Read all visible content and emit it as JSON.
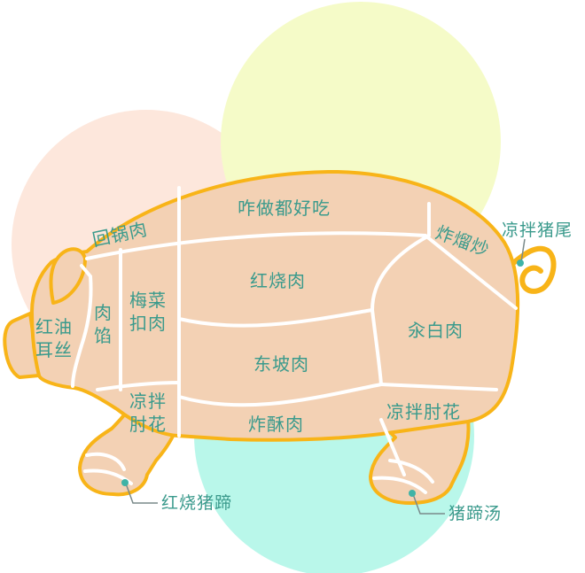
{
  "colors": {
    "circle_peach": "#fde7dc",
    "circle_yellow": "#f5fbc8",
    "circle_mint": "#b9f7ea",
    "body_fill": "#f3d1b4",
    "outline": "#f8b418",
    "divider": "#ffffff",
    "label": "#3a9a8c",
    "dot": "#3fb3a6",
    "leader": "#7a8a8a"
  },
  "cuts": {
    "ear": "回锅肉",
    "loin": "咋做都好吃",
    "shoulder_top": "炸熘炒",
    "cheek": "红油耳丝",
    "jowl": "肉馅",
    "neck": "梅菜扣肉",
    "belly_top": "红烧肉",
    "rump": "汆白肉",
    "belly_mid": "东坡肉",
    "front_shank": "凉拌肘花",
    "belly_bottom": "炸酥肉",
    "rear_shank": "凉拌肘花"
  },
  "callouts": {
    "tail": "凉拌猪尾",
    "front_trotter": "红烧猪蹄",
    "rear_trotter": "猪蹄汤"
  }
}
